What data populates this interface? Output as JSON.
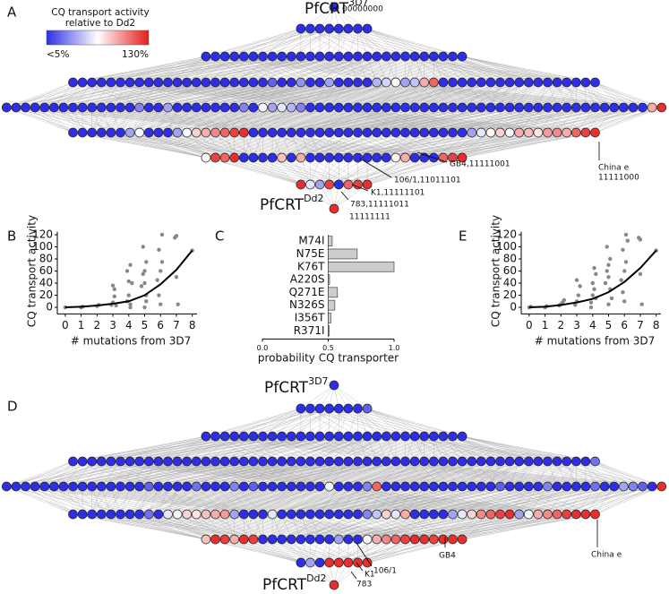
{
  "panel_labels": [
    "A",
    "B",
    "C",
    "D",
    "E"
  ],
  "chart_data": [
    {
      "type": "network",
      "colorbar": {
        "title": [
          "CQ transport activity",
          "relative to Dd2"
        ],
        "clim": [
          {
            "value": 5,
            "label": "<5%"
          },
          {
            "value": 130,
            "label": "130%"
          }
        ],
        "colors": [
          "#2e2ee6",
          "#ffffff",
          "#e61c1c"
        ]
      },
      "top": {
        "name": "PfCRT",
        "sup": "3D7",
        "code": "00000000"
      },
      "bottom": {
        "name": "PfCRT",
        "sup": "Dd2",
        "code": "11111111"
      },
      "annotations": [
        "China e",
        "11111000",
        "GB4,11111001",
        "106/1,11011101",
        "K1,11111101",
        "783,11111011"
      ],
      "layers": [
        [
          3
        ],
        [
          5,
          5,
          5,
          5,
          5,
          5,
          5,
          5
        ],
        [
          5,
          5,
          5,
          5,
          5,
          5,
          5,
          5,
          5,
          5,
          5,
          5,
          5,
          5,
          5,
          5,
          5,
          5,
          5,
          5,
          5,
          5,
          5,
          5,
          5,
          5,
          5,
          5
        ],
        [
          5,
          5,
          5,
          5,
          5,
          5,
          5,
          5,
          5,
          5,
          5,
          5,
          5,
          5,
          5,
          5,
          5,
          5,
          5,
          5,
          5,
          20,
          5,
          5,
          35,
          5,
          5,
          40,
          5,
          5,
          5,
          5,
          45,
          55,
          70,
          40,
          50,
          90,
          110,
          5,
          5,
          5,
          5,
          5,
          5,
          5,
          5,
          5,
          5,
          5,
          5,
          5,
          5,
          5,
          5,
          5
        ],
        [
          5,
          5,
          5,
          5,
          5,
          5,
          5,
          5,
          5,
          5,
          5,
          5,
          5,
          5,
          30,
          5,
          5,
          40,
          5,
          5,
          5,
          5,
          5,
          5,
          5,
          30,
          5,
          65,
          40,
          60,
          45,
          30,
          5,
          5,
          5,
          5,
          5,
          5,
          5,
          5,
          5,
          5,
          5,
          5,
          5,
          5,
          5,
          5,
          5,
          5,
          5,
          5,
          5,
          5,
          5,
          5,
          5,
          5,
          5,
          5,
          5,
          5,
          5,
          5,
          5,
          5,
          5,
          5,
          90,
          125
        ],
        [
          5,
          5,
          5,
          5,
          5,
          5,
          40,
          65,
          5,
          5,
          5,
          40,
          65,
          80,
          90,
          100,
          110,
          120,
          125,
          5,
          5,
          5,
          5,
          5,
          5,
          5,
          5,
          5,
          5,
          5,
          5,
          5,
          5,
          5,
          5,
          5,
          5,
          5,
          5,
          5,
          5,
          5,
          40,
          60,
          70,
          80,
          65,
          90,
          85,
          75,
          95,
          100,
          90,
          110,
          120,
          125
        ],
        [
          70,
          120,
          110,
          125,
          5,
          5,
          5,
          5,
          85,
          5,
          90,
          5,
          5,
          5,
          5,
          5,
          5,
          5,
          5,
          5,
          70,
          90,
          5,
          5,
          5,
          110,
          120,
          125
        ],
        [
          125,
          60,
          40,
          120,
          5,
          110,
          120,
          125
        ],
        [
          125
        ]
      ]
    },
    {
      "type": "scatter",
      "xlabel": "# mutations from 3D7",
      "ylabel": "CQ transport activity",
      "color": "#888888",
      "x": [
        0,
        1,
        1.1,
        2,
        2.1,
        2.9,
        3,
        3.1,
        3.2,
        3,
        3.1,
        3.9,
        4,
        4.1,
        4.2,
        4,
        4.1,
        3.9,
        4.1,
        4.8,
        4.9,
        5,
        5.1,
        5,
        5.1,
        4.9,
        5,
        5.1,
        5.8,
        5.9,
        6,
        6.1,
        6,
        6.1,
        5.9,
        6.9,
        7,
        7.1,
        7,
        8
      ],
      "y": [
        0,
        0,
        1,
        2,
        4,
        4,
        8,
        18,
        3,
        36,
        30,
        10,
        20,
        5,
        40,
        43,
        70,
        60,
        0,
        35,
        55,
        60,
        20,
        0,
        75,
        100,
        40,
        10,
        45,
        95,
        60,
        120,
        5,
        75,
        20,
        115,
        118,
        5,
        50,
        94
      ],
      "line": {
        "color": "#000000",
        "x": [
          0,
          1,
          2,
          3,
          4,
          5,
          6,
          7,
          8
        ],
        "y": [
          0,
          1,
          3,
          6,
          10,
          20,
          38,
          62,
          94
        ]
      },
      "xlim": [
        -0.5,
        8.3
      ],
      "ylim": [
        -5,
        125
      ],
      "xticks": [
        0,
        1,
        2,
        3,
        4,
        5,
        6,
        7,
        8
      ],
      "yticks": [
        0,
        20,
        40,
        60,
        80,
        100,
        120
      ]
    },
    {
      "type": "bar",
      "orientation": "horizontal",
      "xlabel": "probability CQ transporter",
      "color": "#cccccc",
      "categories": [
        "M74I",
        "N75E",
        "K76T",
        "A220S",
        "Q271E",
        "N326S",
        "I356T",
        "R371I"
      ],
      "values": [
        0.53,
        0.72,
        1.0,
        0.51,
        0.57,
        0.55,
        0.52,
        0.5
      ],
      "baseline": 0.5,
      "xlim": [
        0,
        1
      ],
      "xticks": [
        {
          "value": 0,
          "label": "0.0"
        },
        {
          "value": 0.5,
          "label": "0.5"
        },
        {
          "value": 1,
          "label": "1.0"
        }
      ]
    },
    {
      "type": "network",
      "top": {
        "name": "PfCRT",
        "sup": "3D7"
      },
      "bottom": {
        "name": "PfCRT",
        "sup": "Dd2"
      },
      "annotations": [
        "China e",
        "GB4",
        "106/1",
        "K1",
        "783"
      ],
      "layers": [
        [
          3
        ],
        [
          5,
          5,
          5,
          5,
          5,
          5,
          5,
          20
        ],
        [
          5,
          5,
          5,
          5,
          5,
          5,
          5,
          5,
          5,
          5,
          5,
          5,
          5,
          5,
          5,
          5,
          5,
          5,
          5,
          5,
          5,
          5,
          5,
          5,
          5,
          5,
          5,
          5
        ],
        [
          5,
          5,
          5,
          5,
          5,
          5,
          5,
          5,
          5,
          5,
          5,
          5,
          5,
          5,
          5,
          5,
          5,
          5,
          5,
          5,
          5,
          5,
          5,
          5,
          5,
          5,
          5,
          5,
          5,
          5,
          5,
          5,
          5,
          5,
          5,
          5,
          5,
          5,
          5,
          5,
          5,
          5,
          5,
          5,
          5,
          5,
          5,
          5,
          5,
          5,
          5,
          5,
          5,
          5,
          5,
          25
        ],
        [
          5,
          5,
          5,
          5,
          5,
          5,
          5,
          5,
          5,
          5,
          5,
          5,
          5,
          5,
          5,
          20,
          5,
          5,
          5,
          5,
          25,
          5,
          5,
          5,
          30,
          5,
          20,
          5,
          5,
          5,
          5,
          5,
          5,
          5,
          65,
          5,
          5,
          5,
          30,
          110,
          5,
          5,
          5,
          5,
          5,
          5,
          5,
          5,
          5,
          5,
          5,
          5,
          20,
          5,
          5,
          5,
          5,
          30,
          5,
          5,
          5,
          5,
          25,
          5,
          5,
          40,
          30,
          20,
          5,
          125
        ],
        [
          5,
          5,
          5,
          5,
          5,
          5,
          5,
          5,
          25,
          5,
          60,
          65,
          80,
          75,
          85,
          90,
          95,
          40,
          5,
          5,
          5,
          60,
          5,
          5,
          5,
          5,
          5,
          5,
          5,
          5,
          5,
          30,
          50,
          80,
          60,
          90,
          5,
          5,
          5,
          5,
          40,
          60,
          80,
          100,
          110,
          120,
          125,
          40,
          65,
          90,
          100,
          110,
          120,
          125,
          125,
          125
        ],
        [
          85,
          125,
          120,
          90,
          125,
          120,
          5,
          5,
          5,
          5,
          5,
          5,
          5,
          5,
          40,
          5,
          5,
          65,
          90,
          100,
          110,
          120,
          125,
          125,
          120,
          125,
          125,
          125
        ],
        [
          5,
          40,
          5,
          125,
          125,
          125,
          125,
          125
        ],
        [
          125
        ]
      ]
    },
    {
      "type": "scatter",
      "xlabel": "# mutations from 3D7",
      "ylabel": "CQ transport activity",
      "color": "#888888",
      "x": [
        0,
        0.1,
        1,
        1.1,
        1.9,
        2,
        2.1,
        2.2,
        2.9,
        3,
        3.1,
        3.2,
        3,
        3.9,
        4,
        4.1,
        4.2,
        4,
        4.1,
        3.9,
        4.2,
        4.8,
        4.9,
        5,
        5.1,
        5,
        5.1,
        4.9,
        5,
        5.2,
        5.8,
        5.9,
        6,
        6.1,
        6,
        6.1,
        5.9,
        6.2,
        6.9,
        7,
        7.1,
        7,
        8
      ],
      "y": [
        0,
        1,
        0,
        2,
        3,
        5,
        8,
        12,
        4,
        10,
        20,
        35,
        45,
        8,
        20,
        30,
        55,
        40,
        65,
        0,
        15,
        40,
        60,
        70,
        30,
        5,
        80,
        100,
        50,
        15,
        45,
        95,
        60,
        120,
        10,
        75,
        25,
        110,
        115,
        112,
        5,
        55,
        94
      ],
      "line": {
        "color": "#000000",
        "x": [
          0,
          1,
          2,
          3,
          4,
          5,
          6,
          7,
          8
        ],
        "y": [
          0,
          1,
          4,
          8,
          14,
          25,
          42,
          65,
          94
        ]
      },
      "xlim": [
        -0.5,
        8.3
      ],
      "ylim": [
        -5,
        125
      ],
      "xticks": [
        0,
        1,
        2,
        3,
        4,
        5,
        6,
        7,
        8
      ],
      "yticks": [
        0,
        20,
        40,
        60,
        80,
        100,
        120
      ]
    }
  ]
}
